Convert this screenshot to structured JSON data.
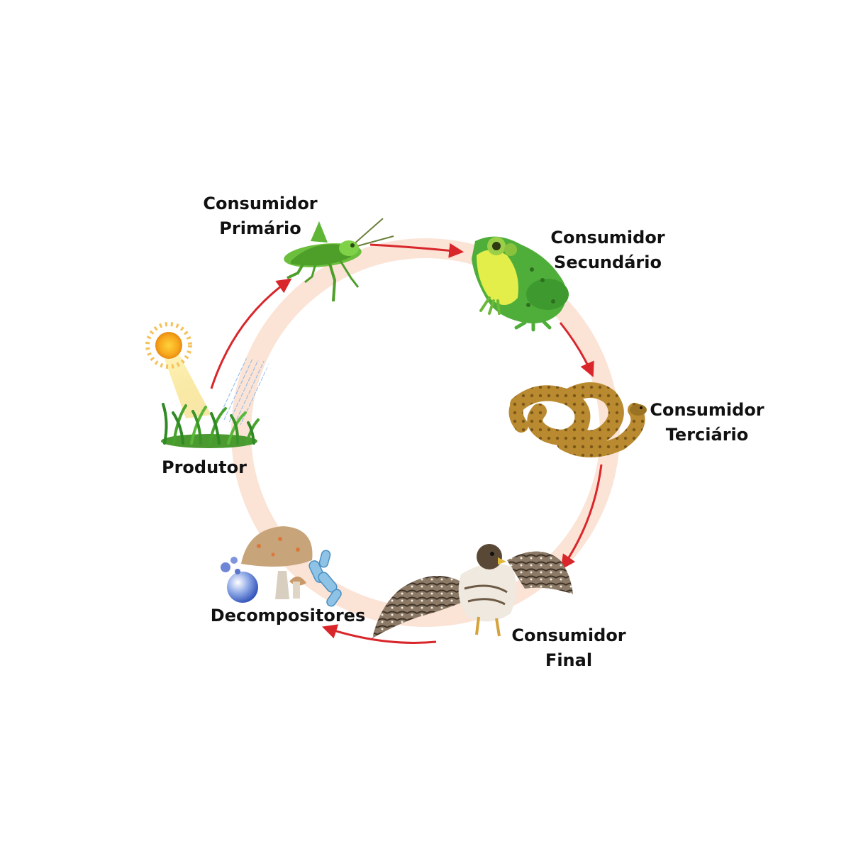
{
  "colors": {
    "ring": "#fbe3d6",
    "arrow": "#d9262b",
    "background": "#ffffff"
  },
  "nodes": {
    "produtor": {
      "line1": "Produtor",
      "icon": "grass-sun-rain-icon"
    },
    "primario": {
      "line1": "Consumidor",
      "line2": "Primário",
      "icon": "grasshopper-icon"
    },
    "secundario": {
      "line1": "Consumidor",
      "line2": "Secundário",
      "icon": "frog-icon"
    },
    "terciario": {
      "line1": "Consumidor",
      "line2": "Terciário",
      "icon": "snake-icon"
    },
    "final": {
      "line1": "Consumidor",
      "line2": "Final",
      "icon": "hawk-icon"
    },
    "decompositores": {
      "line1": "Decompositores",
      "icon": "mushroom-bacteria-icon"
    }
  }
}
